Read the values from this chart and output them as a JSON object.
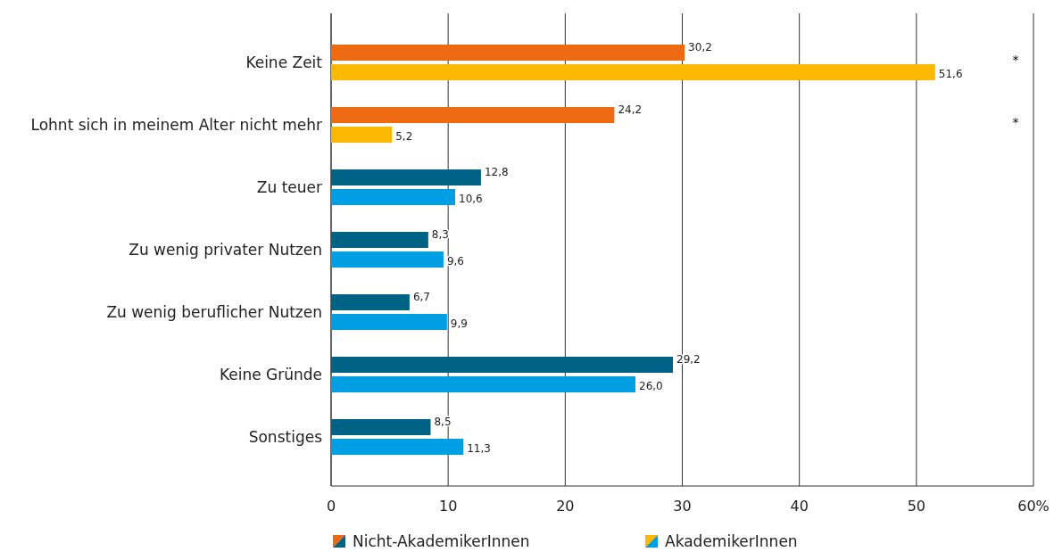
{
  "chart_data": {
    "type": "bar",
    "orientation": "horizontal",
    "categories": [
      "Keine Zeit",
      "Lohnt sich in meinem Alter nicht mehr",
      "Zu teuer",
      "Zu wenig privater Nutzen",
      "Zu wenig beruflicher Nutzen",
      "Keine Gründe",
      "Sonstiges"
    ],
    "series": [
      {
        "name": "Nicht-AkademikerInnen",
        "colors": [
          "#ee6a12",
          "#ee6a12",
          "#006385",
          "#006385",
          "#006385",
          "#006385",
          "#006385"
        ],
        "values": [
          30.2,
          24.2,
          12.8,
          8.3,
          6.7,
          29.2,
          8.5
        ],
        "value_labels": [
          "30,2",
          "24,2",
          "12,8",
          "8,3",
          "6,7",
          "29,2",
          "8,5"
        ]
      },
      {
        "name": "AkademikerInnen",
        "colors": [
          "#fbb800",
          "#fbb800",
          "#009fe3",
          "#009fe3",
          "#009fe3",
          "#009fe3",
          "#009fe3"
        ],
        "values": [
          51.6,
          5.2,
          10.6,
          9.6,
          9.9,
          26.0,
          11.3
        ],
        "value_labels": [
          "51,6",
          "5,2",
          "10,6",
          "9,6",
          "9,9",
          "26,0",
          "11,3"
        ]
      }
    ],
    "xlim": [
      0,
      60
    ],
    "xticks": [
      0,
      10,
      20,
      30,
      40,
      50,
      {
        "value": 60,
        "label": "60%"
      }
    ],
    "grid": "x",
    "legend": "bottom",
    "annotations": [
      "*",
      "*"
    ]
  }
}
